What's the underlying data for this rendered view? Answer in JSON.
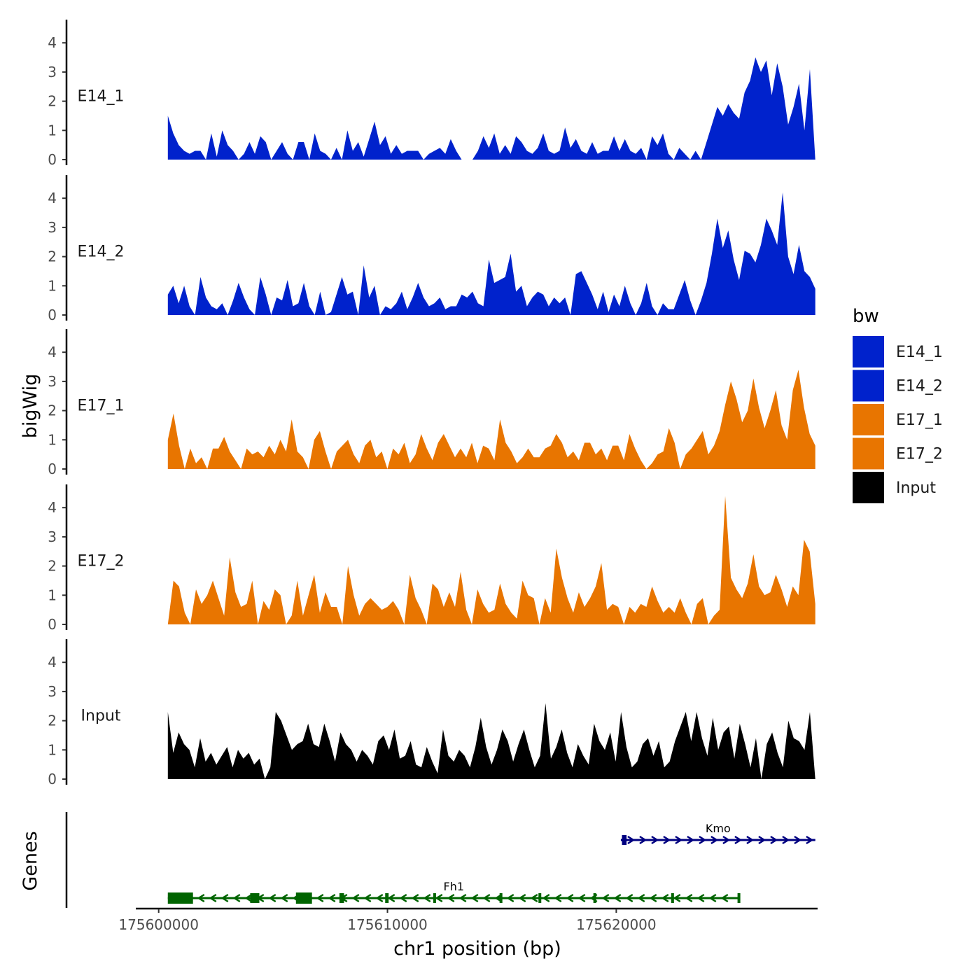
{
  "chart_data": {
    "type": "area",
    "ylabel": "bigWig",
    "xlabel": "chr1 position (bp)",
    "xlim": [
      175599000,
      175628800
    ],
    "ylim": [
      0,
      4.6
    ],
    "data_range": [
      175600400,
      175628700
    ],
    "x_ticks": [
      {
        "value": 175600000,
        "label": "175600000"
      },
      {
        "value": 175610000,
        "label": "175610000"
      },
      {
        "value": 175620000,
        "label": "175620000"
      }
    ],
    "y_ticks": [
      {
        "value": 0,
        "label": "0"
      },
      {
        "value": 1,
        "label": "1"
      },
      {
        "value": 2,
        "label": "2"
      },
      {
        "value": 3,
        "label": "3"
      },
      {
        "value": 4,
        "label": "4"
      }
    ],
    "tracks": [
      {
        "name": "E14_1",
        "color": "#0022cc",
        "values": [
          1.5,
          0.9,
          0.5,
          0.3,
          0.2,
          0.3,
          0.3,
          0.0,
          0.9,
          0.1,
          1.0,
          0.5,
          0.3,
          0.0,
          0.2,
          0.6,
          0.2,
          0.8,
          0.6,
          0.0,
          0.3,
          0.6,
          0.2,
          0.0,
          0.6,
          0.6,
          0.0,
          0.9,
          0.3,
          0.2,
          0.0,
          0.4,
          0.0,
          1.0,
          0.3,
          0.6,
          0.1,
          0.7,
          1.3,
          0.5,
          0.8,
          0.2,
          0.5,
          0.2,
          0.3,
          0.3,
          0.3,
          0.0,
          0.2,
          0.3,
          0.4,
          0.2,
          0.7,
          0.3,
          0.0,
          0.0,
          0.0,
          0.3,
          0.8,
          0.4,
          0.9,
          0.2,
          0.5,
          0.2,
          0.8,
          0.6,
          0.3,
          0.2,
          0.4,
          0.9,
          0.3,
          0.2,
          0.3,
          1.1,
          0.4,
          0.7,
          0.3,
          0.2,
          0.6,
          0.2,
          0.3,
          0.3,
          0.8,
          0.3,
          0.7,
          0.3,
          0.2,
          0.4,
          0.0,
          0.8,
          0.5,
          0.9,
          0.2,
          0.0,
          0.4,
          0.2,
          0.0,
          0.3,
          0.0,
          0.6,
          1.2,
          1.8,
          1.5,
          1.9,
          1.6,
          1.4,
          2.3,
          2.7,
          3.5,
          3.0,
          3.4,
          2.2,
          3.3,
          2.5,
          1.2,
          1.8,
          2.6,
          1.0,
          3.1,
          0.0
        ]
      },
      {
        "name": "E14_2",
        "color": "#0022cc",
        "values": [
          0.7,
          1.0,
          0.4,
          1.0,
          0.3,
          0.0,
          1.3,
          0.6,
          0.3,
          0.2,
          0.4,
          0.0,
          0.5,
          1.1,
          0.6,
          0.2,
          0.0,
          1.3,
          0.7,
          0.0,
          0.6,
          0.5,
          1.2,
          0.3,
          0.4,
          1.1,
          0.3,
          0.0,
          0.8,
          0.0,
          0.1,
          0.7,
          1.3,
          0.7,
          0.8,
          0.0,
          1.7,
          0.6,
          1.0,
          0.0,
          0.3,
          0.2,
          0.4,
          0.8,
          0.2,
          0.6,
          1.1,
          0.6,
          0.3,
          0.4,
          0.6,
          0.2,
          0.3,
          0.3,
          0.7,
          0.6,
          0.8,
          0.4,
          0.3,
          1.9,
          1.1,
          1.2,
          1.3,
          2.1,
          0.8,
          1.0,
          0.3,
          0.6,
          0.8,
          0.7,
          0.3,
          0.6,
          0.4,
          0.6,
          0.0,
          1.4,
          1.5,
          1.1,
          0.7,
          0.2,
          0.8,
          0.1,
          0.7,
          0.3,
          1.0,
          0.4,
          0.0,
          0.4,
          1.1,
          0.3,
          0.0,
          0.4,
          0.2,
          0.2,
          0.7,
          1.2,
          0.5,
          0.0,
          0.5,
          1.1,
          2.1,
          3.3,
          2.3,
          2.9,
          1.9,
          1.2,
          2.2,
          2.1,
          1.8,
          2.4,
          3.3,
          2.9,
          2.4,
          4.2,
          2.0,
          1.4,
          2.4,
          1.5,
          1.3,
          0.9
        ]
      },
      {
        "name": "E17_1",
        "color": "#e87500",
        "values": [
          1.0,
          1.9,
          0.8,
          0.0,
          0.7,
          0.2,
          0.4,
          0.0,
          0.7,
          0.7,
          1.1,
          0.6,
          0.3,
          0.0,
          0.7,
          0.5,
          0.6,
          0.4,
          0.8,
          0.5,
          1.0,
          0.6,
          1.7,
          0.6,
          0.4,
          0.0,
          1.0,
          1.3,
          0.6,
          0.0,
          0.6,
          0.8,
          1.0,
          0.5,
          0.2,
          0.8,
          1.0,
          0.4,
          0.6,
          0.0,
          0.7,
          0.5,
          0.9,
          0.2,
          0.5,
          1.2,
          0.7,
          0.3,
          0.9,
          1.2,
          0.8,
          0.4,
          0.7,
          0.4,
          0.9,
          0.2,
          0.8,
          0.7,
          0.3,
          1.7,
          0.9,
          0.6,
          0.2,
          0.4,
          0.7,
          0.4,
          0.4,
          0.7,
          0.8,
          1.2,
          0.9,
          0.4,
          0.6,
          0.3,
          0.9,
          0.9,
          0.5,
          0.7,
          0.3,
          0.8,
          0.8,
          0.3,
          1.2,
          0.7,
          0.3,
          0.0,
          0.2,
          0.5,
          0.6,
          1.4,
          0.9,
          0.0,
          0.5,
          0.7,
          1.0,
          1.3,
          0.5,
          0.8,
          1.3,
          2.2,
          3.0,
          2.4,
          1.6,
          2.0,
          3.1,
          2.1,
          1.4,
          2.0,
          2.7,
          1.5,
          1.0,
          2.7,
          3.4,
          2.1,
          1.2,
          0.8
        ]
      },
      {
        "name": "E17_2",
        "color": "#e87500",
        "values": [
          0.0,
          1.5,
          1.3,
          0.4,
          0.0,
          1.2,
          0.7,
          1.0,
          1.5,
          0.9,
          0.3,
          2.3,
          1.1,
          0.6,
          0.7,
          1.5,
          0.0,
          0.8,
          0.5,
          1.2,
          1.0,
          0.0,
          0.3,
          1.5,
          0.3,
          1.0,
          1.7,
          0.4,
          1.1,
          0.6,
          0.6,
          0.0,
          2.0,
          1.0,
          0.3,
          0.7,
          0.9,
          0.7,
          0.5,
          0.6,
          0.8,
          0.5,
          0.0,
          1.7,
          0.9,
          0.5,
          0.0,
          1.4,
          1.2,
          0.6,
          1.1,
          0.6,
          1.8,
          0.5,
          0.0,
          1.2,
          0.7,
          0.4,
          0.5,
          1.4,
          0.7,
          0.4,
          0.2,
          1.5,
          1.0,
          0.9,
          0.0,
          0.9,
          0.4,
          2.6,
          1.6,
          0.9,
          0.4,
          1.1,
          0.6,
          0.9,
          1.3,
          2.1,
          0.5,
          0.7,
          0.6,
          0.0,
          0.6,
          0.4,
          0.7,
          0.6,
          1.3,
          0.8,
          0.4,
          0.6,
          0.4,
          0.9,
          0.4,
          0.0,
          0.7,
          0.9,
          0.0,
          0.3,
          0.5,
          4.4,
          1.6,
          1.2,
          0.9,
          1.4,
          2.4,
          1.3,
          1.0,
          1.1,
          1.7,
          1.2,
          0.6,
          1.3,
          1.0,
          2.9,
          2.5,
          0.7
        ]
      },
      {
        "name": "Input",
        "color": "#000000",
        "values": [
          2.3,
          0.9,
          1.6,
          1.2,
          1.0,
          0.4,
          1.4,
          0.6,
          0.9,
          0.5,
          0.8,
          1.1,
          0.4,
          1.0,
          0.7,
          0.9,
          0.5,
          0.7,
          0.0,
          0.4,
          2.3,
          2.0,
          1.5,
          1.0,
          1.2,
          1.3,
          1.9,
          1.2,
          1.1,
          1.9,
          1.3,
          0.6,
          1.6,
          1.2,
          1.0,
          0.6,
          1.0,
          0.8,
          0.5,
          1.3,
          1.5,
          1.0,
          1.7,
          0.7,
          0.8,
          1.3,
          0.5,
          0.4,
          1.1,
          0.6,
          0.2,
          1.7,
          0.8,
          0.6,
          1.0,
          0.8,
          0.4,
          1.1,
          2.1,
          1.1,
          0.5,
          1.0,
          1.7,
          1.3,
          0.6,
          1.2,
          1.7,
          1.0,
          0.4,
          0.8,
          2.6,
          0.7,
          1.1,
          1.7,
          0.9,
          0.4,
          1.2,
          0.8,
          0.5,
          1.9,
          1.3,
          1.0,
          1.6,
          0.6,
          2.3,
          1.1,
          0.4,
          0.6,
          1.2,
          1.4,
          0.8,
          1.3,
          0.4,
          0.6,
          1.3,
          1.8,
          2.3,
          1.3,
          2.3,
          1.4,
          0.8,
          2.1,
          1.0,
          1.6,
          1.8,
          0.7,
          1.9,
          1.2,
          0.4,
          1.4,
          0.0,
          1.2,
          1.6,
          0.9,
          0.4,
          2.0,
          1.4,
          1.3,
          1.0,
          2.3,
          0.0
        ]
      }
    ],
    "gene_track": {
      "label": "Genes",
      "genes": [
        {
          "name": "Kmo",
          "strand": "+",
          "color": "#000080",
          "start": 175620200,
          "end": 175628700,
          "exons": [
            [
              175620250,
              175620450
            ]
          ]
        },
        {
          "name": "Fh1",
          "strand": "-",
          "color": "#006400",
          "start": 175600400,
          "end": 175625400,
          "exons": [
            [
              175600400,
              175601500
            ],
            [
              175604000,
              175604400
            ],
            [
              175606000,
              175606700
            ],
            [
              175607900,
              175608100
            ],
            [
              175609900,
              175610050
            ],
            [
              175612000,
              175612100
            ],
            [
              175614900,
              175615000
            ],
            [
              175616600,
              175616700
            ],
            [
              175619000,
              175619100
            ],
            [
              175622400,
              175622500
            ],
            [
              175625300,
              175625400
            ]
          ]
        }
      ]
    },
    "legend": {
      "title": "bw",
      "position": "right",
      "items": [
        {
          "label": "E14_1",
          "color": "#0022cc"
        },
        {
          "label": "E14_2",
          "color": "#0022cc"
        },
        {
          "label": "E17_1",
          "color": "#e87500"
        },
        {
          "label": "E17_2",
          "color": "#e87500"
        },
        {
          "label": "Input",
          "color": "#000000"
        }
      ]
    }
  }
}
